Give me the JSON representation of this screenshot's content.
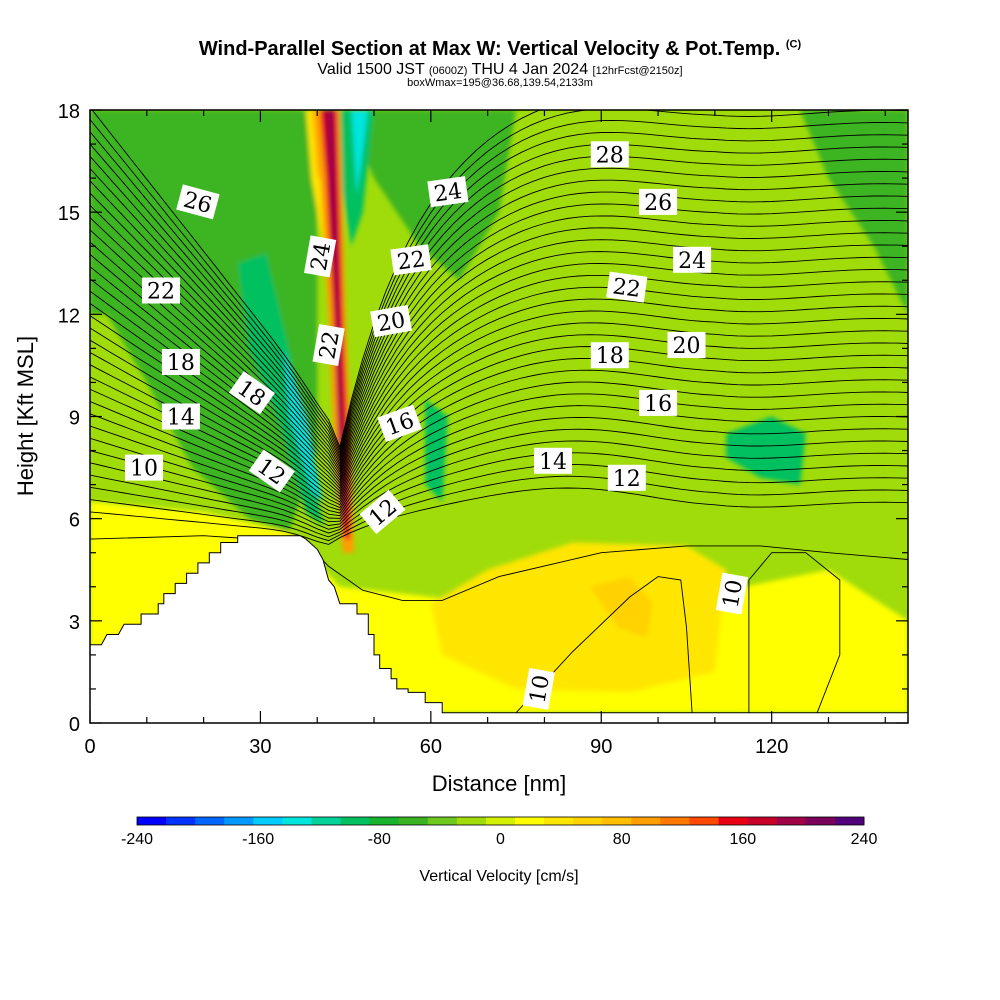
{
  "header": {
    "title": "Wind-Parallel Section at Max W: Vertical Velocity & Pot.Temp.",
    "title_suffix": "(C)",
    "valid_a": "Valid 1500 JST",
    "valid_b": "(0600Z)",
    "valid_c": "THU 4 Jan 2024",
    "valid_d": "[12hrFcst@2150z]",
    "box": "boxWmax=195@36.68,139.54,2133m"
  },
  "chart_data": {
    "type": "heatmap",
    "xlabel": "Distance [nm]",
    "ylabel": "Height [Kft MSL]",
    "xlim": [
      0,
      144
    ],
    "ylim": [
      0,
      18
    ],
    "x_ticks": [
      0,
      30,
      60,
      90,
      120
    ],
    "y_ticks": [
      0,
      3,
      6,
      9,
      12,
      15,
      18
    ],
    "colorbar": {
      "label": "Vertical Velocity [cm/s]",
      "range": [
        -240,
        240
      ],
      "ticks": [
        -240,
        -160,
        -80,
        0,
        80,
        160,
        240
      ],
      "colors": [
        "#0000ff",
        "#0033ff",
        "#0066ff",
        "#0099ff",
        "#00ccff",
        "#00e5dd",
        "#00d29a",
        "#00c060",
        "#18b430",
        "#3cb422",
        "#6ec81e",
        "#a0dc0a",
        "#d2f000",
        "#ffff00",
        "#ffe600",
        "#ffd200",
        "#ffbe00",
        "#ff9e00",
        "#ff7800",
        "#ff4800",
        "#e80014",
        "#c80028",
        "#a00046",
        "#78005a",
        "#50007a"
      ]
    },
    "terrain": [
      [
        0,
        2.3
      ],
      [
        2,
        2.3
      ],
      [
        3,
        2.6
      ],
      [
        5,
        2.6
      ],
      [
        6,
        2.9
      ],
      [
        9,
        2.9
      ],
      [
        9,
        3.2
      ],
      [
        12,
        3.2
      ],
      [
        12,
        3.5
      ],
      [
        13,
        3.5
      ],
      [
        13,
        3.8
      ],
      [
        15,
        3.8
      ],
      [
        15,
        4.1
      ],
      [
        17,
        4.1
      ],
      [
        17,
        4.4
      ],
      [
        19,
        4.4
      ],
      [
        19,
        4.7
      ],
      [
        21,
        4.7
      ],
      [
        21,
        5.0
      ],
      [
        23,
        5.0
      ],
      [
        23,
        5.3
      ],
      [
        26,
        5.3
      ],
      [
        26,
        5.5
      ],
      [
        37,
        5.5
      ],
      [
        38,
        5.4
      ],
      [
        40,
        5.1
      ],
      [
        41,
        4.8
      ],
      [
        42,
        4.2
      ],
      [
        43,
        4.0
      ],
      [
        44,
        3.5
      ],
      [
        47,
        3.5
      ],
      [
        47,
        3.2
      ],
      [
        49,
        3.2
      ],
      [
        49,
        2.6
      ],
      [
        50,
        2.6
      ],
      [
        50,
        2.0
      ],
      [
        51,
        2.0
      ],
      [
        51,
        1.6
      ],
      [
        53,
        1.6
      ],
      [
        53,
        1.3
      ],
      [
        54,
        1.3
      ],
      [
        54,
        1.0
      ],
      [
        56,
        1.0
      ],
      [
        56,
        0.9
      ],
      [
        59,
        0.9
      ],
      [
        59,
        0.6
      ],
      [
        62,
        0.6
      ],
      [
        62,
        0.3
      ],
      [
        65,
        0.3
      ],
      [
        65,
        0.3
      ],
      [
        144,
        0.3
      ]
    ],
    "w_regions": [
      {
        "w": -60,
        "pts": [
          [
            0,
            18
          ],
          [
            40,
            18
          ],
          [
            40,
            8
          ],
          [
            35,
            5.6
          ],
          [
            28,
            6
          ],
          [
            18,
            7.5
          ],
          [
            10,
            10
          ],
          [
            3,
            12
          ],
          [
            0,
            12
          ]
        ]
      },
      {
        "w": -60,
        "pts": [
          [
            45,
            18
          ],
          [
            75,
            18
          ],
          [
            72,
            15
          ],
          [
            65,
            13
          ],
          [
            58,
            14
          ],
          [
            50,
            16
          ]
        ]
      },
      {
        "w": -60,
        "pts": [
          [
            125,
            18
          ],
          [
            144,
            18
          ],
          [
            144,
            12
          ],
          [
            138,
            14
          ],
          [
            130,
            16
          ]
        ]
      },
      {
        "w": -100,
        "pts": [
          [
            26,
            13.5
          ],
          [
            31,
            13.8
          ],
          [
            35,
            11
          ],
          [
            39,
            7.5
          ],
          [
            41,
            5.8
          ],
          [
            38,
            6.2
          ],
          [
            33,
            9
          ],
          [
            28,
            11
          ]
        ]
      },
      {
        "w": -100,
        "pts": [
          [
            44,
            18
          ],
          [
            50,
            18
          ],
          [
            48,
            15
          ],
          [
            46,
            14
          ],
          [
            44,
            16
          ]
        ]
      },
      {
        "w": -100,
        "pts": [
          [
            112,
            8.5
          ],
          [
            120,
            9
          ],
          [
            126,
            8.5
          ],
          [
            125,
            7
          ],
          [
            118,
            7.2
          ],
          [
            112,
            7.8
          ]
        ]
      },
      {
        "w": -100,
        "pts": [
          [
            59,
            9.5
          ],
          [
            63,
            9
          ],
          [
            62,
            6.5
          ],
          [
            59,
            7
          ]
        ]
      },
      {
        "w": -140,
        "pts": [
          [
            34,
            11
          ],
          [
            38,
            9
          ],
          [
            41,
            6.5
          ],
          [
            39,
            6.8
          ],
          [
            35,
            9
          ]
        ]
      },
      {
        "w": -140,
        "pts": [
          [
            46,
            18
          ],
          [
            49,
            18
          ],
          [
            47,
            15.5
          ]
        ]
      },
      {
        "w": 20,
        "pts": [
          [
            0,
            6.5
          ],
          [
            20,
            6.2
          ],
          [
            35,
            5.6
          ],
          [
            44,
            4
          ],
          [
            55,
            3.8
          ],
          [
            70,
            3.5
          ],
          [
            100,
            3.5
          ],
          [
            130,
            4.5
          ],
          [
            144,
            3
          ],
          [
            144,
            0.3
          ],
          [
            0,
            0.3
          ]
        ]
      },
      {
        "w": 40,
        "pts": [
          [
            60,
            3.5
          ],
          [
            70,
            4.5
          ],
          [
            85,
            5.3
          ],
          [
            105,
            5.2
          ],
          [
            112,
            4.5
          ],
          [
            110,
            1.5
          ],
          [
            95,
            0.9
          ],
          [
            75,
            1
          ],
          [
            62,
            2
          ]
        ]
      },
      {
        "w": 60,
        "pts": [
          [
            88,
            4
          ],
          [
            95,
            4.3
          ],
          [
            99,
            3.5
          ],
          [
            98,
            2.5
          ],
          [
            93,
            2.8
          ]
        ]
      },
      {
        "w": 40,
        "pts": [
          [
            38,
            18
          ],
          [
            43,
            18
          ],
          [
            44,
            16
          ],
          [
            41,
            14
          ],
          [
            39,
            16
          ]
        ]
      },
      {
        "w": 80,
        "pts": [
          [
            39,
            18
          ],
          [
            43,
            18
          ],
          [
            43,
            16
          ],
          [
            40,
            16
          ]
        ]
      },
      {
        "w": 100,
        "pts": [
          [
            39.5,
            18
          ],
          [
            44,
            18
          ],
          [
            45,
            12
          ],
          [
            46,
            8
          ],
          [
            46.5,
            5
          ],
          [
            44.5,
            5
          ],
          [
            43,
            8
          ],
          [
            42,
            12
          ],
          [
            40.5,
            16
          ]
        ]
      },
      {
        "w": 150,
        "pts": [
          [
            40.5,
            18
          ],
          [
            43.5,
            18
          ],
          [
            44.5,
            12
          ],
          [
            45.5,
            8
          ],
          [
            45.8,
            5.4
          ],
          [
            44.8,
            5.4
          ],
          [
            43.8,
            8
          ],
          [
            42.8,
            12
          ],
          [
            41.5,
            16
          ]
        ]
      },
      {
        "w": 200,
        "pts": [
          [
            41.3,
            18
          ],
          [
            43,
            18
          ],
          [
            44,
            12
          ],
          [
            45,
            7
          ],
          [
            44.5,
            5.6
          ],
          [
            44,
            7
          ],
          [
            43.2,
            12
          ],
          [
            42,
            16
          ]
        ]
      }
    ],
    "theta_labels": [
      {
        "v": "26",
        "x": 19,
        "y": 15.3,
        "rot": 15
      },
      {
        "v": "22",
        "x": 12.5,
        "y": 12.7,
        "rot": 0
      },
      {
        "v": "18",
        "x": 16,
        "y": 10.6,
        "rot": 0
      },
      {
        "v": "14",
        "x": 16,
        "y": 9.0,
        "rot": 0
      },
      {
        "v": "10",
        "x": 9.5,
        "y": 7.5,
        "rot": 0
      },
      {
        "v": "18",
        "x": 28.5,
        "y": 9.7,
        "rot": 35
      },
      {
        "v": "12",
        "x": 32,
        "y": 7.4,
        "rot": 35
      },
      {
        "v": "24",
        "x": 40.5,
        "y": 13.7,
        "rot": -80
      },
      {
        "v": "22",
        "x": 42,
        "y": 11.1,
        "rot": -80
      },
      {
        "v": "24",
        "x": 63,
        "y": 15.6,
        "rot": -8
      },
      {
        "v": "22",
        "x": 56.5,
        "y": 13.6,
        "rot": -8
      },
      {
        "v": "20",
        "x": 53,
        "y": 11.8,
        "rot": -10
      },
      {
        "v": "16",
        "x": 54.5,
        "y": 8.8,
        "rot": -20
      },
      {
        "v": "12",
        "x": 51.5,
        "y": 6.2,
        "rot": -40
      },
      {
        "v": "28",
        "x": 91.5,
        "y": 16.7,
        "rot": 0
      },
      {
        "v": "26",
        "x": 100,
        "y": 15.3,
        "rot": 0
      },
      {
        "v": "24",
        "x": 106,
        "y": 13.6,
        "rot": 0
      },
      {
        "v": "22",
        "x": 94.5,
        "y": 12.8,
        "rot": 8
      },
      {
        "v": "20",
        "x": 105,
        "y": 11.1,
        "rot": 0
      },
      {
        "v": "18",
        "x": 91.5,
        "y": 10.8,
        "rot": 0
      },
      {
        "v": "16",
        "x": 100,
        "y": 9.4,
        "rot": 0
      },
      {
        "v": "14",
        "x": 81.5,
        "y": 7.7,
        "rot": 0
      },
      {
        "v": "12",
        "x": 94.5,
        "y": 7.2,
        "rot": 0
      },
      {
        "v": "10",
        "x": 113,
        "y": 3.8,
        "rot": -80
      },
      {
        "v": "10",
        "x": 79,
        "y": 1.0,
        "rot": -80
      }
    ]
  }
}
